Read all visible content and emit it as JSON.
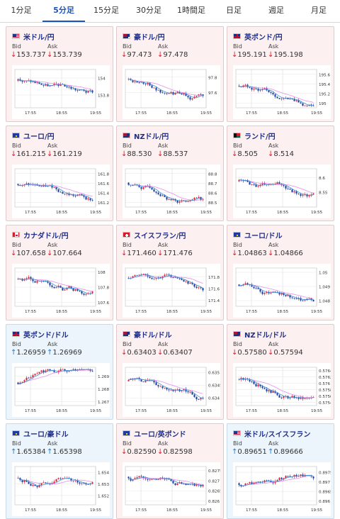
{
  "tabs": [
    {
      "label": "1分足",
      "active": false
    },
    {
      "label": "5分足",
      "active": true
    },
    {
      "label": "15分足",
      "active": false
    },
    {
      "label": "30分足",
      "active": false
    },
    {
      "label": "1時間足",
      "active": false
    },
    {
      "label": "日足",
      "active": false
    },
    {
      "label": "週足",
      "active": false
    },
    {
      "label": "月足",
      "active": false
    }
  ],
  "labels": {
    "bid": "Bid",
    "ask": "Ask"
  },
  "colors": {
    "down_arrow": "#d21b2b",
    "up_arrow": "#1f7ac9",
    "candle_up": "#d8253a",
    "candle_down": "#1d3fa0",
    "ma_pink": "#e58ee6",
    "ma_blue": "#3c8fd8"
  },
  "cards": [
    {
      "title": "米ドル/円",
      "flag": "us",
      "trend": "down",
      "bid": "153.737",
      "ask": "153.739",
      "chart_data": {
        "type": "candlestick",
        "x_ticks": [
          "17:55",
          "18:55",
          "19:55"
        ],
        "y_ticks": [
          "154",
          "153.8"
        ],
        "ylim": [
          153.65,
          154.1
        ]
      }
    },
    {
      "title": "豪ドル/円",
      "flag": "au",
      "trend": "down",
      "bid": "97.473",
      "ask": "97.478",
      "chart_data": {
        "type": "candlestick",
        "x_ticks": [
          "17:55",
          "18:55",
          "19:55"
        ],
        "y_ticks": [
          "97.8",
          "97.6"
        ],
        "ylim": [
          97.4,
          97.9
        ]
      }
    },
    {
      "title": "英ポンド/円",
      "flag": "gb",
      "trend": "down",
      "bid": "195.191",
      "ask": "195.198",
      "chart_data": {
        "type": "candlestick",
        "x_ticks": [
          "17:55",
          "18:55",
          "19:55"
        ],
        "y_ticks": [
          "195.6",
          "195.4",
          "195.2",
          "195"
        ],
        "ylim": [
          194.9,
          195.7
        ]
      }
    },
    {
      "title": "ユーロ/円",
      "flag": "eu",
      "trend": "down",
      "bid": "161.215",
      "ask": "161.219",
      "chart_data": {
        "type": "candlestick",
        "x_ticks": [
          "17:55",
          "18:55",
          "19:55"
        ],
        "y_ticks": [
          "161.8",
          "161.6",
          "161.4",
          "161.2"
        ],
        "ylim": [
          161.1,
          161.9
        ]
      }
    },
    {
      "title": "NZドル/円",
      "flag": "nz",
      "trend": "down",
      "bid": "88.530",
      "ask": "88.537",
      "chart_data": {
        "type": "candlestick",
        "x_ticks": [
          "17:55",
          "18:55",
          "19:55"
        ],
        "y_ticks": [
          "88.8",
          "88.7",
          "88.6",
          "88.5"
        ],
        "ylim": [
          88.45,
          88.85
        ]
      }
    },
    {
      "title": "ランド/円",
      "flag": "za",
      "trend": "down",
      "bid": "8.505",
      "ask": "8.514",
      "chart_data": {
        "type": "candlestick",
        "x_ticks": [
          "17:55",
          "18:55",
          "19:55"
        ],
        "y_ticks": [
          "8.6",
          "8.55"
        ],
        "ylim": [
          8.5,
          8.63
        ]
      }
    },
    {
      "title": "カナダドル/円",
      "flag": "ca",
      "trend": "down",
      "bid": "107.658",
      "ask": "107.664",
      "chart_data": {
        "type": "candlestick",
        "x_ticks": [
          "17:55",
          "18:55",
          "19:55"
        ],
        "y_ticks": [
          "108",
          "107.8",
          "107.6"
        ],
        "ylim": [
          107.55,
          108.05
        ]
      }
    },
    {
      "title": "スイスフラン/円",
      "flag": "ch",
      "trend": "down",
      "bid": "171.460",
      "ask": "171.476",
      "chart_data": {
        "type": "candlestick",
        "x_ticks": [
          "17:55",
          "18:55",
          "19:55"
        ],
        "y_ticks": [
          "171.8",
          "171.6",
          "171.4"
        ],
        "ylim": [
          171.3,
          171.95
        ]
      }
    },
    {
      "title": "ユーロ/ドル",
      "flag": "eu",
      "trend": "down",
      "bid": "1.04863",
      "ask": "1.04866",
      "chart_data": {
        "type": "candlestick",
        "x_ticks": [
          "17:55",
          "18:55",
          "19:55"
        ],
        "y_ticks": [
          "1.05",
          "1.049",
          "1.048"
        ],
        "ylim": [
          1.0476,
          1.0503
        ]
      }
    },
    {
      "title": "英ポンド/ドル",
      "flag": "gb",
      "trend": "up",
      "bid": "1.26959",
      "ask": "1.26969",
      "chart_data": {
        "type": "candlestick",
        "x_ticks": [
          "17:55",
          "18:55",
          "19:55"
        ],
        "y_ticks": [
          "1.269",
          "1.268",
          "1.267"
        ],
        "ylim": [
          1.2667,
          1.2697
        ]
      }
    },
    {
      "title": "豪ドル/ドル",
      "flag": "au",
      "trend": "down",
      "bid": "0.63403",
      "ask": "0.63407",
      "chart_data": {
        "type": "candlestick",
        "x_ticks": [
          "17:55",
          "18:55",
          "19:55"
        ],
        "y_ticks": [
          "0.635",
          "0.6345",
          "0.634"
        ],
        "ylim": [
          0.6337,
          0.6352
        ]
      }
    },
    {
      "title": "NZドル/ドル",
      "flag": "nz",
      "trend": "down",
      "bid": "0.57580",
      "ask": "0.57594",
      "chart_data": {
        "type": "candlestick",
        "x_ticks": [
          "17:55",
          "18:55",
          "19:55"
        ],
        "y_ticks": [
          "0.5764",
          "0.5762",
          "0.576",
          "0.5758",
          "0.5756",
          "0.5754"
        ],
        "ylim": [
          0.5753,
          0.5765
        ]
      }
    },
    {
      "title": "ユーロ/豪ドル",
      "flag": "eu",
      "trend": "up",
      "bid": "1.65384",
      "ask": "1.65398",
      "chart_data": {
        "type": "candlestick",
        "x_ticks": [
          "17:55",
          "18:55",
          "19:55"
        ],
        "y_ticks": [
          "1.654",
          "1.653",
          "1.652"
        ],
        "ylim": [
          1.6512,
          1.6545
        ]
      }
    },
    {
      "title": "ユーロ/英ポンド",
      "flag": "eu",
      "trend": "down",
      "bid": "0.82590",
      "ask": "0.82598",
      "chart_data": {
        "type": "candlestick",
        "x_ticks": [
          "17:55",
          "18:55",
          "19:55"
        ],
        "y_ticks": [
          "0.8275",
          "0.827",
          "0.8265",
          "0.826"
        ],
        "ylim": [
          0.8258,
          0.8277
        ]
      }
    },
    {
      "title": "米ドル/スイスフラン",
      "flag": "us",
      "trend": "up",
      "bid": "0.89651",
      "ask": "0.89666",
      "chart_data": {
        "type": "candlestick",
        "x_ticks": [
          "17:55",
          "18:55",
          "19:55"
        ],
        "y_ticks": [
          "0.8975",
          "0.897",
          "0.8965",
          "0.896"
        ],
        "ylim": [
          0.8958,
          0.8978
        ]
      }
    }
  ]
}
